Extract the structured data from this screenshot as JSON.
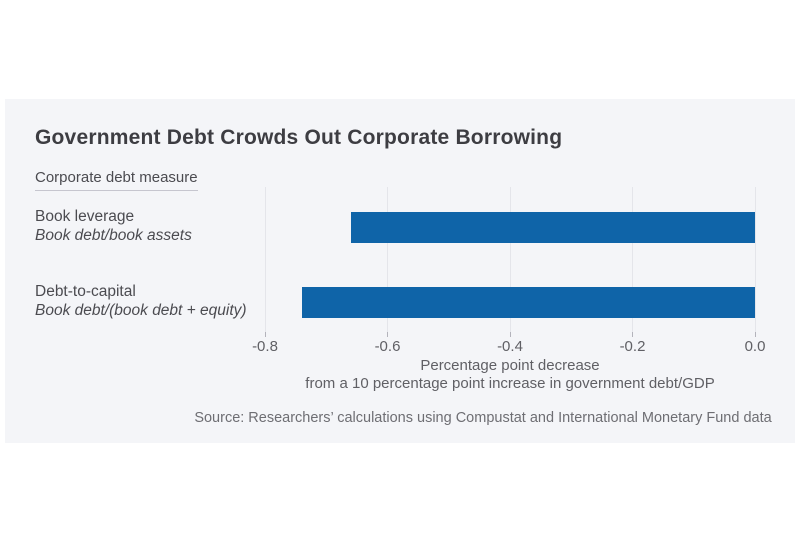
{
  "colors": {
    "bar": "#0f64a8",
    "panel_bg": "#f4f5f8",
    "gridline": "#e4e5ea",
    "tick": "#b3b3bb"
  },
  "chart_data": {
    "type": "bar",
    "orientation": "horizontal",
    "title": "Government Debt Crowds Out Corporate Borrowing",
    "group_label": "Corporate debt measure",
    "categories": [
      {
        "label": "Book leverage",
        "sublabel": "Book debt/book assets",
        "value": -0.66
      },
      {
        "label": "Debt-to-capital",
        "sublabel": "Book debt/(book debt + equity)",
        "value": -0.74
      }
    ],
    "xlim": [
      -0.8,
      0
    ],
    "x_ticks": [
      {
        "v": -0.8,
        "label": "-0.8"
      },
      {
        "v": -0.6,
        "label": "-0.6"
      },
      {
        "v": -0.4,
        "label": "-0.4"
      },
      {
        "v": -0.2,
        "label": "-0.2"
      },
      {
        "v": 0.0,
        "label": "0.0"
      }
    ],
    "xlabel_line1": "Percentage point decrease",
    "xlabel_line2": "from a 10 percentage point increase in government debt/GDP",
    "source": "Source: Researchers’ calculations using Compustat and International Monetary Fund data",
    "grid": true,
    "legend": "none"
  }
}
